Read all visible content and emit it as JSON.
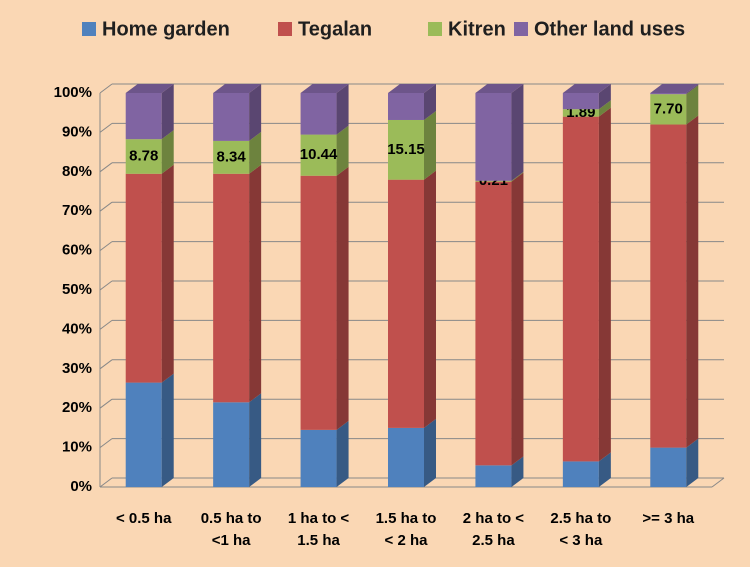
{
  "chart_data": {
    "type": "bar",
    "stacked": true,
    "categories": [
      "< 0.5 ha",
      "0.5 ha to\n<1 ha",
      "1 ha to <\n1.5 ha",
      "1.5 ha to\n< 2 ha",
      "2 ha to <\n2.5 ha",
      "2.5 ha to\n< 3 ha",
      ">= 3 ha"
    ],
    "series": [
      {
        "name": "Home garden",
        "color": "#4f81bd",
        "values": [
          26.5,
          21.5,
          14.5,
          15,
          5.5,
          6.5,
          10
        ]
      },
      {
        "name": "Tegalan",
        "color": "#c0504d",
        "values": [
          53,
          58,
          64.5,
          63,
          72,
          87.5,
          82
        ]
      },
      {
        "name": "Kitren",
        "color": "#9bbb59",
        "values": [
          8.78,
          8.34,
          10.44,
          15.15,
          0.21,
          1.89,
          7.7
        ],
        "value_labels": [
          "8.78",
          "8.34",
          "10.44",
          "15.15",
          "0.21",
          "1.89",
          "7.70"
        ]
      },
      {
        "name": "Other land uses",
        "color": "#8064a2",
        "values": [
          11.72,
          12.16,
          10.56,
          6.85,
          22.29,
          4.11,
          0.3
        ]
      }
    ],
    "ylim": [
      0,
      100
    ],
    "yticks": [
      {
        "value": 0,
        "label": "0%"
      },
      {
        "value": 10,
        "label": "10%"
      },
      {
        "value": 20,
        "label": "20%"
      },
      {
        "value": 30,
        "label": "30%"
      },
      {
        "value": 40,
        "label": "40%"
      },
      {
        "value": 50,
        "label": "50%"
      },
      {
        "value": 60,
        "label": "60%"
      },
      {
        "value": 70,
        "label": "70%"
      },
      {
        "value": 80,
        "label": "80%"
      },
      {
        "value": 90,
        "label": "90%"
      },
      {
        "value": 100,
        "label": "100%"
      }
    ],
    "grid": true,
    "legend": "top"
  }
}
